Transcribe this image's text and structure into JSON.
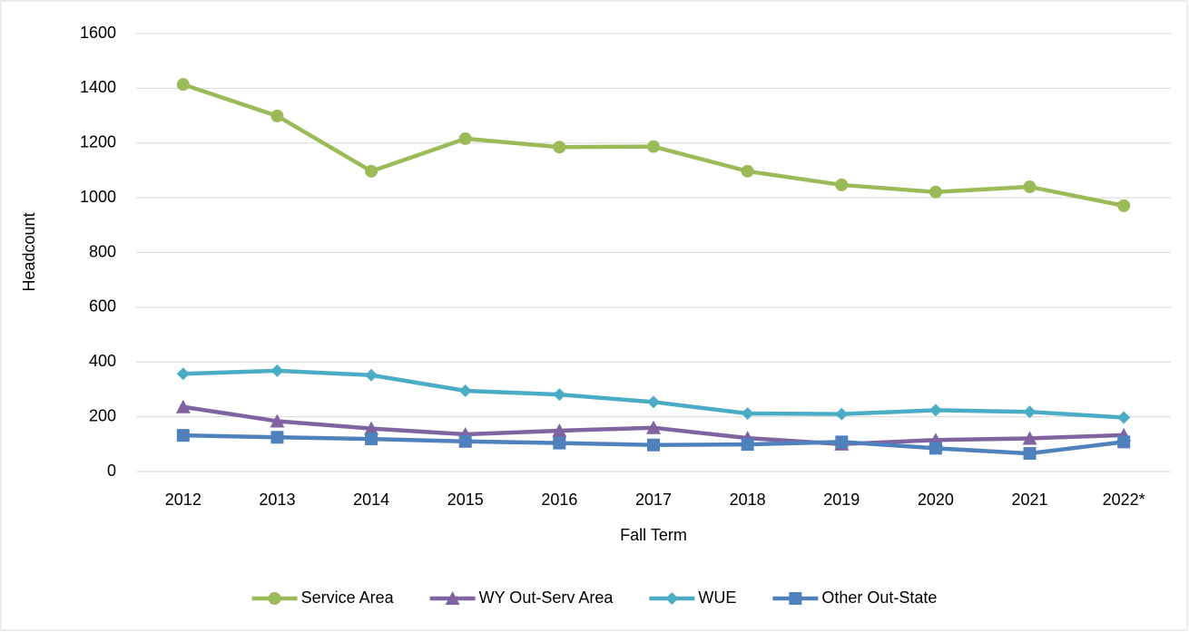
{
  "chart_data": {
    "type": "line",
    "x_label": "Fall Term",
    "y_label": "Headcount",
    "categories": [
      "2012",
      "2013",
      "2014",
      "2015",
      "2016",
      "2017",
      "2018",
      "2019",
      "2020",
      "2021",
      "2022*"
    ],
    "series": [
      {
        "name": "Service Area",
        "color": "#9bbb59",
        "marker": "circle",
        "values": [
          1414,
          1299,
          1097,
          1216,
          1185,
          1187,
          1097,
          1047,
          1021,
          1040,
          971
        ]
      },
      {
        "name": "WY Out-Serv Area",
        "color": "#8064a2",
        "marker": "triangle",
        "values": [
          236,
          184,
          157,
          136,
          149,
          160,
          122,
          100,
          115,
          121,
          133
        ]
      },
      {
        "name": "WUE",
        "color": "#4bacc6",
        "marker": "diamond",
        "values": [
          357,
          368,
          352,
          295,
          281,
          254,
          212,
          210,
          224,
          218,
          197
        ]
      },
      {
        "name": "Other Out-State",
        "color": "#4f81bd",
        "marker": "square",
        "values": [
          132,
          125,
          119,
          110,
          104,
          97,
          99,
          108,
          85,
          66,
          108
        ]
      }
    ],
    "ylim": [
      0,
      1600
    ],
    "yticks": [
      0,
      200,
      400,
      600,
      800,
      1000,
      1200,
      1400,
      1600
    ],
    "grid": true,
    "legend": "bottom"
  }
}
